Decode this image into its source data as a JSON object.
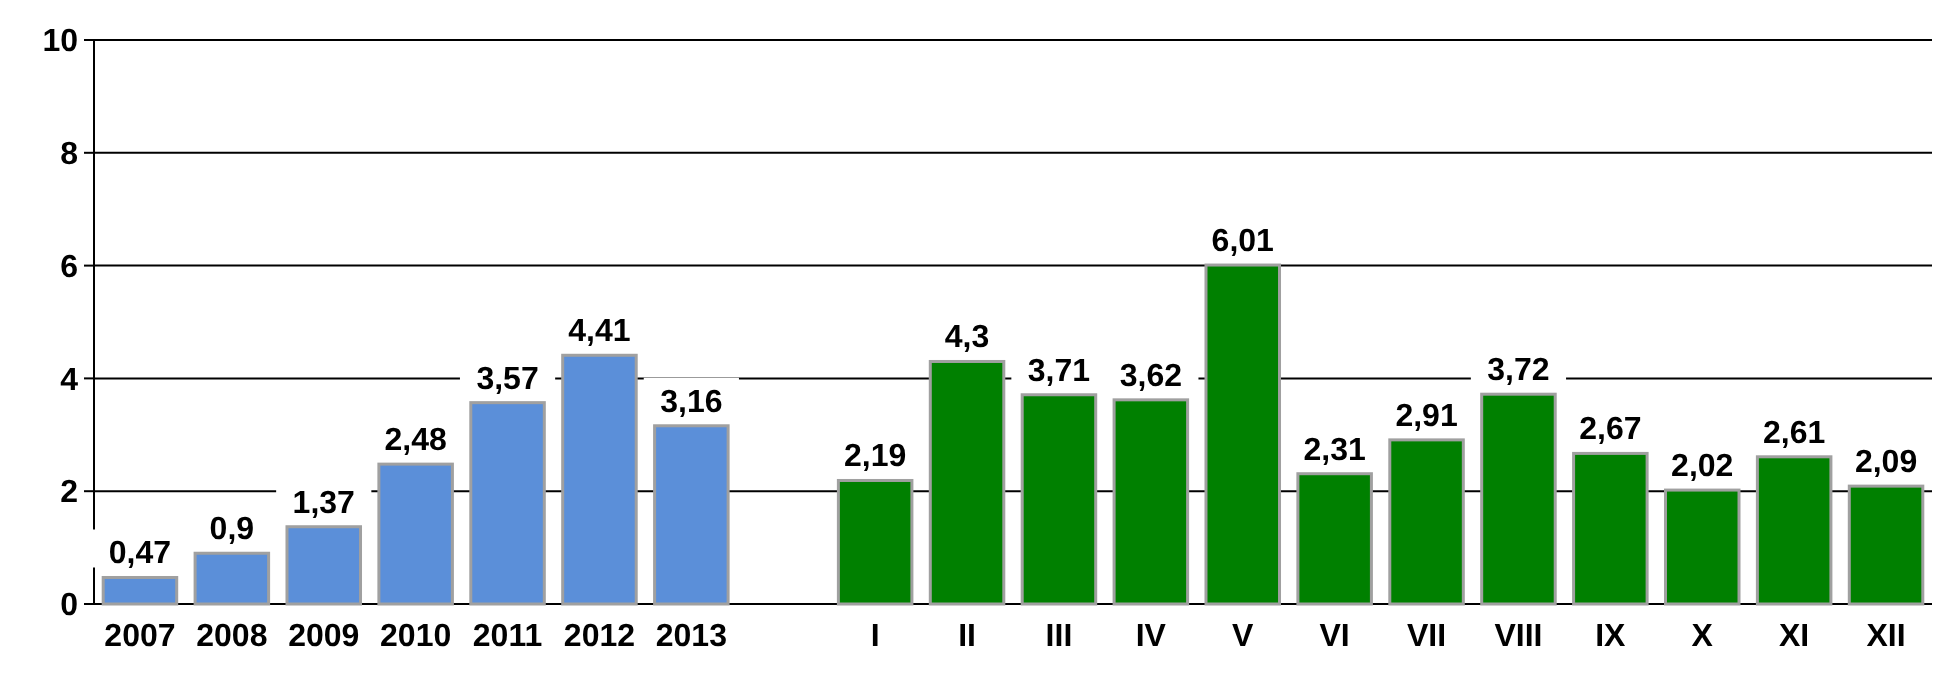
{
  "chart_data": {
    "type": "bar",
    "categories": [
      "2007",
      "2008",
      "2009",
      "2010",
      "2011",
      "2012",
      "2013",
      null,
      "I",
      "II",
      "III",
      "IV",
      "V",
      "VI",
      "VII",
      "VIII",
      "IX",
      "X",
      "XI",
      "XII"
    ],
    "values": [
      0.47,
      0.9,
      1.37,
      2.48,
      3.57,
      4.41,
      3.16,
      null,
      2.19,
      4.3,
      3.71,
      3.62,
      6.01,
      2.31,
      2.91,
      3.72,
      2.67,
      2.02,
      2.61,
      2.09
    ],
    "value_labels": [
      "0,47",
      "0,9",
      "1,37",
      "2,48",
      "3,57",
      "4,41",
      "3,16",
      null,
      "2,19",
      "4,3",
      "3,71",
      "3,62",
      "6,01",
      "2,31",
      "2,91",
      "3,72",
      "2,67",
      "2,02",
      "2,61",
      "2,09"
    ],
    "colors": [
      "#5b8fd9",
      "#5b8fd9",
      "#5b8fd9",
      "#5b8fd9",
      "#5b8fd9",
      "#5b8fd9",
      "#5b8fd9",
      null,
      "#008000",
      "#008000",
      "#008000",
      "#008000",
      "#008000",
      "#008000",
      "#008000",
      "#008000",
      "#008000",
      "#008000",
      "#008000",
      "#008000"
    ],
    "ylim": [
      0,
      10
    ],
    "yticks": [
      0,
      2,
      4,
      6,
      8,
      10
    ],
    "grid": "y"
  }
}
